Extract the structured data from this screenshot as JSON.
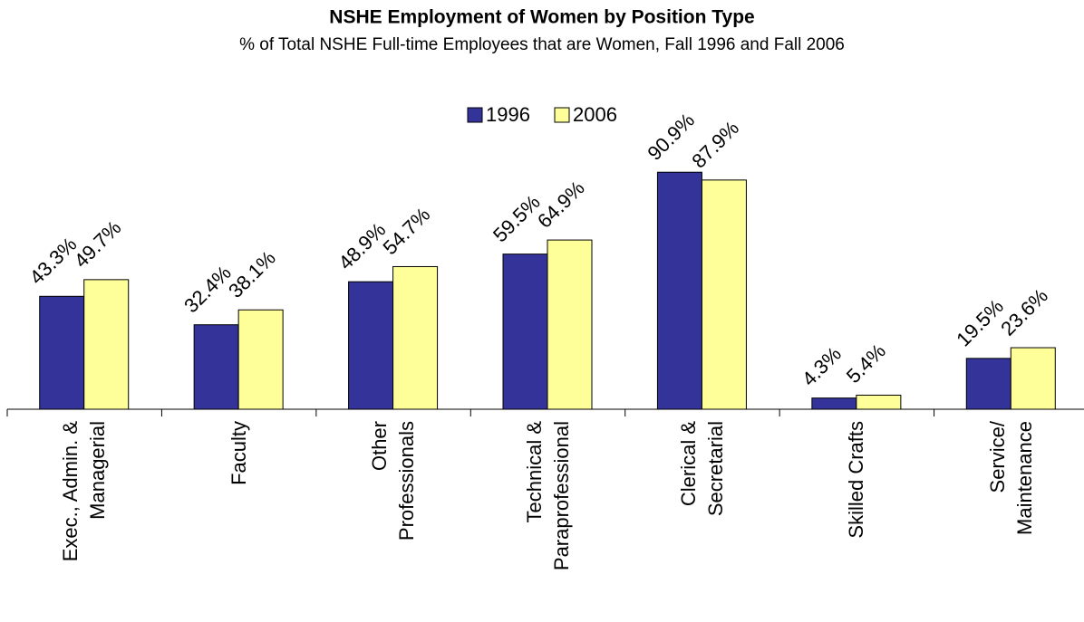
{
  "chart_data": {
    "type": "bar",
    "title": "NSHE Employment of Women by Position Type",
    "subtitle": "% of Total NSHE Full-time Employees that are Women, Fall 1996 and Fall 2006",
    "categories": [
      "Exec., Admin. &\nManagerial",
      "Faculty",
      "Other\nProfessionals",
      "Technical &\nParaprofessional",
      "Clerical &\nSecretarial",
      "Skilled Crafts",
      "Service/\nMaintenance"
    ],
    "series": [
      {
        "name": "1996",
        "color": "#333399",
        "values": [
          43.3,
          32.4,
          48.9,
          59.5,
          90.9,
          4.3,
          19.5
        ],
        "value_labels": [
          "43.3%",
          "32.4%",
          "48.9%",
          "59.5%",
          "90.9%",
          "4.3%",
          "19.5%"
        ]
      },
      {
        "name": "2006",
        "color": "#ffff99",
        "values": [
          49.7,
          38.1,
          54.7,
          64.9,
          87.9,
          5.4,
          23.6
        ],
        "value_labels": [
          "49.7%",
          "38.1%",
          "54.7%",
          "64.9%",
          "87.9%",
          "5.4%",
          "23.6%"
        ]
      }
    ],
    "ylim": [
      0,
      100
    ],
    "legend": "top"
  }
}
